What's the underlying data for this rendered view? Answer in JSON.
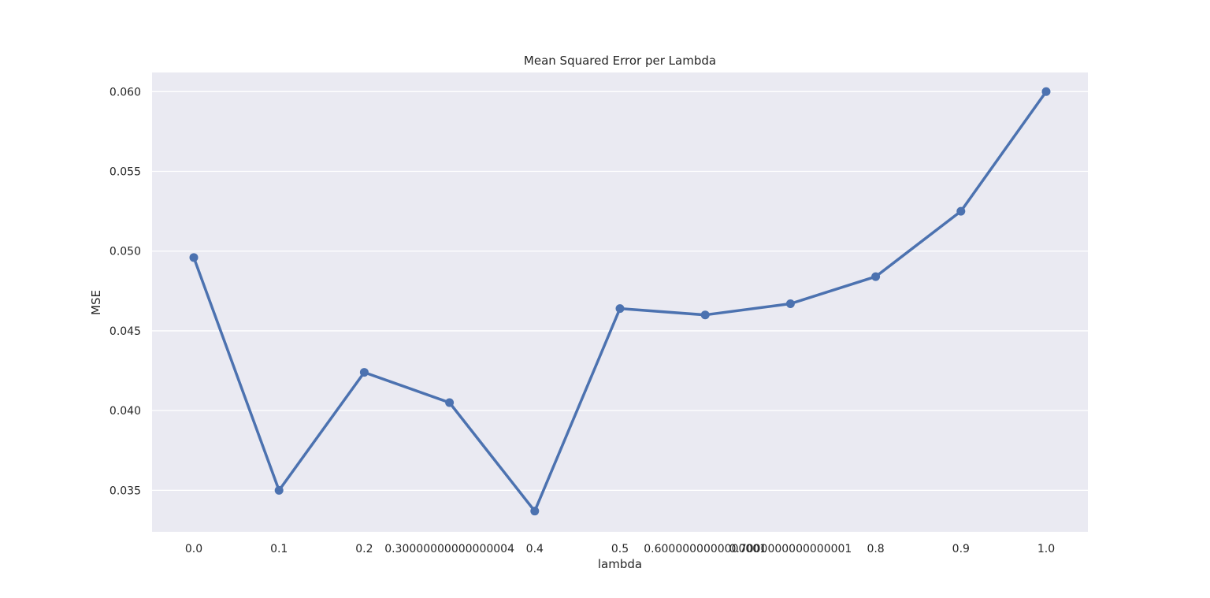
{
  "chart_data": {
    "type": "line",
    "title": "Mean Squared Error per Lambda",
    "xlabel": "lambda",
    "ylabel": "MSE",
    "categories": [
      "0.0",
      "0.1",
      "0.2",
      "0.30000000000000004",
      "0.4",
      "0.5",
      "0.6000000000000001",
      "0.7000000000000001",
      "0.8",
      "0.9",
      "1.0"
    ],
    "series": [
      {
        "values": [
          0.0496,
          0.035,
          0.0424,
          0.0405,
          0.0337,
          0.0464,
          0.046,
          0.0467,
          0.0484,
          0.0525,
          0.06
        ],
        "color": "#4c72b0"
      }
    ],
    "yticks": [
      "0.035",
      "0.040",
      "0.045",
      "0.050",
      "0.055",
      "0.060"
    ],
    "ytick_values": [
      0.035,
      0.04,
      0.045,
      0.05,
      0.055,
      0.06
    ],
    "ylim": [
      0.0324,
      0.0612
    ],
    "grid": true,
    "background": "#eaeaf2",
    "gridcolor": "#ffffff"
  }
}
